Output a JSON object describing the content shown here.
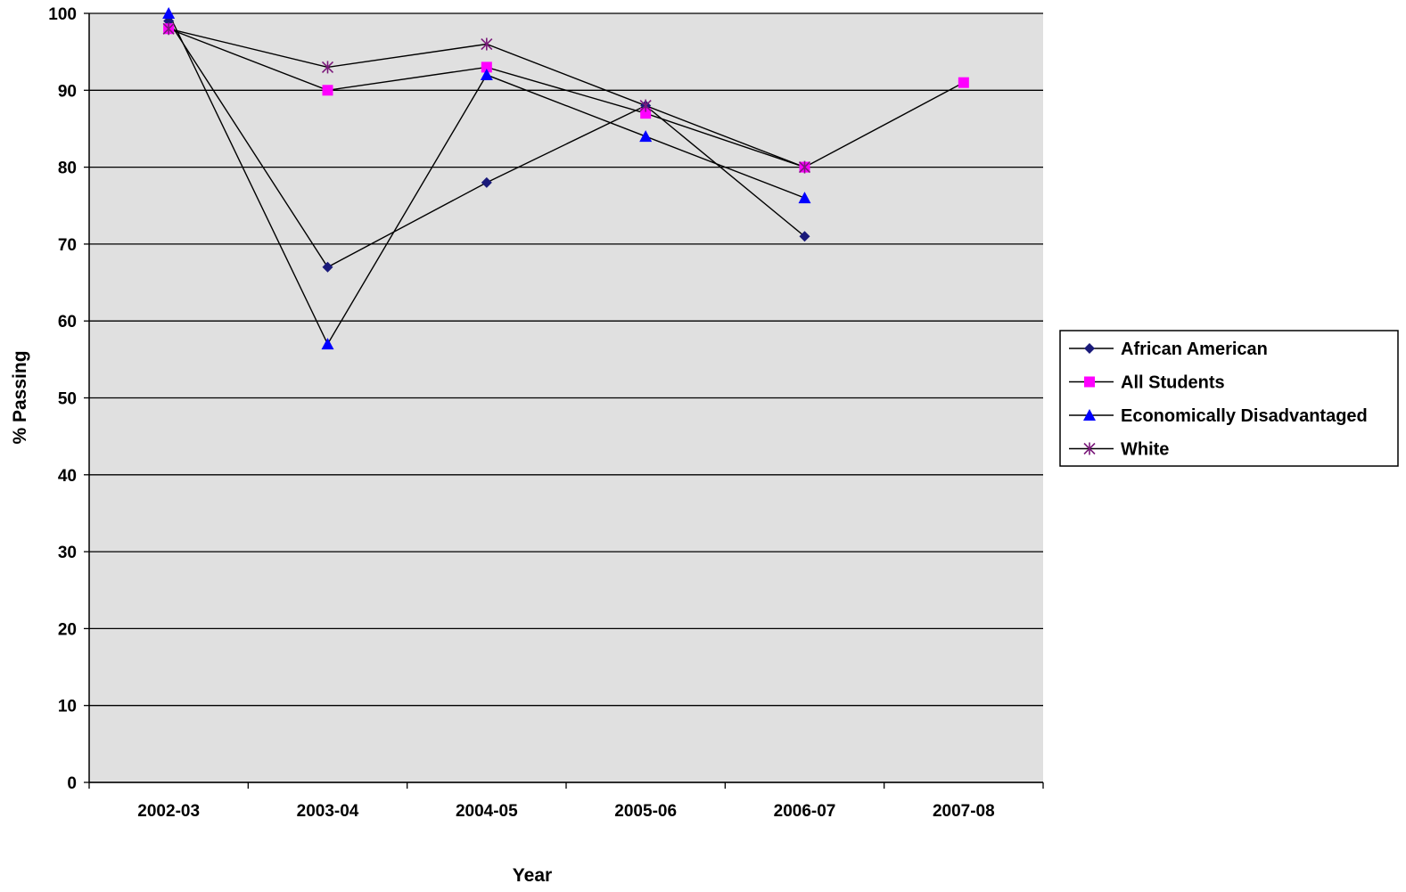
{
  "chart_data": {
    "type": "line",
    "title": "",
    "xlabel": "Year",
    "ylabel": "% Passing",
    "categories": [
      "2002-03",
      "2003-04",
      "2004-05",
      "2005-06",
      "2006-07",
      "2007-08"
    ],
    "ylim": [
      0,
      100
    ],
    "yticks": [
      0,
      10,
      20,
      30,
      40,
      50,
      60,
      70,
      80,
      90,
      100
    ],
    "grid": true,
    "legend_position": "right",
    "plot_background": "#e0e0e0",
    "series": [
      {
        "name": "African American",
        "values": [
          99,
          67,
          78,
          88,
          71,
          null
        ],
        "color": "#1a1a7a",
        "marker": "diamond"
      },
      {
        "name": "All Students",
        "values": [
          98,
          90,
          93,
          87,
          80,
          91
        ],
        "color": "#ff00ff",
        "marker": "square"
      },
      {
        "name": "Economically Disadvantaged",
        "values": [
          100,
          57,
          92,
          84,
          76,
          null
        ],
        "color": "#0000ff",
        "marker": "triangle"
      },
      {
        "name": "White",
        "values": [
          98,
          93,
          96,
          88,
          80,
          null
        ],
        "color": "#7a1a7a",
        "marker": "asterisk"
      }
    ]
  }
}
